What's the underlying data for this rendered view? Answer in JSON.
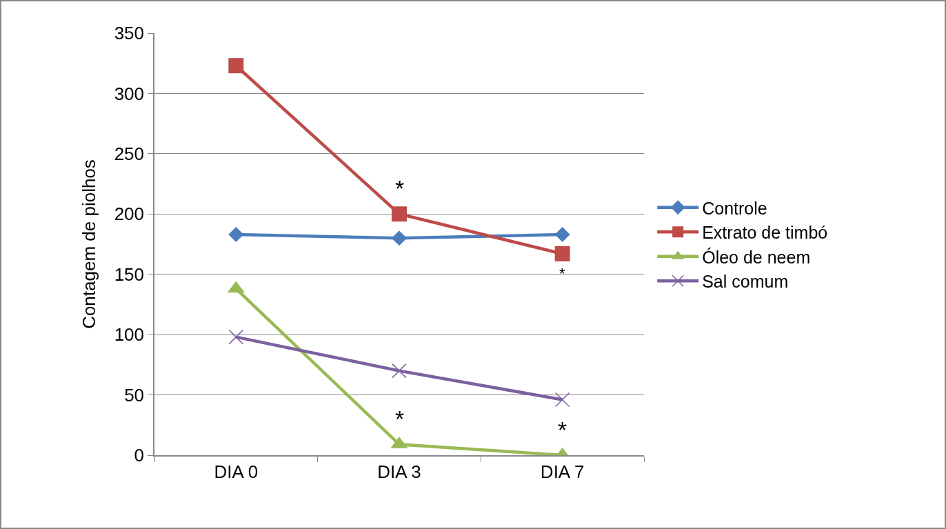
{
  "chart_data": {
    "type": "line",
    "ylabel": "Contagem de piolhos",
    "categories": [
      "DIA 0",
      "DIA 3",
      "DIA 7"
    ],
    "series": [
      {
        "name": "Controle",
        "color": "#4a7ebb",
        "marker": "diamond",
        "values": [
          183,
          180,
          183
        ]
      },
      {
        "name": "Extrato de timbó",
        "color": "#be4b48",
        "marker": "square",
        "values": [
          323,
          200,
          167
        ]
      },
      {
        "name": "Óleo de neem",
        "color": "#98b954",
        "marker": "triangle",
        "values": [
          138,
          9,
          0
        ]
      },
      {
        "name": "Sal comum",
        "color": "#7d60a0",
        "marker": "cross",
        "values": [
          98,
          70,
          46
        ]
      }
    ],
    "ylim": [
      0,
      350
    ],
    "yticks": [
      0,
      50,
      100,
      150,
      200,
      250,
      300,
      350
    ],
    "grid": "y",
    "legend": "right",
    "annotations": [
      {
        "text": "*",
        "x": "DIA 3",
        "y": 200
      },
      {
        "text": "*",
        "x": "DIA 7",
        "y": 167
      },
      {
        "text": "*",
        "x": "DIA 3",
        "y": 9
      },
      {
        "text": "*",
        "x": "DIA 7",
        "y": 0
      }
    ]
  }
}
